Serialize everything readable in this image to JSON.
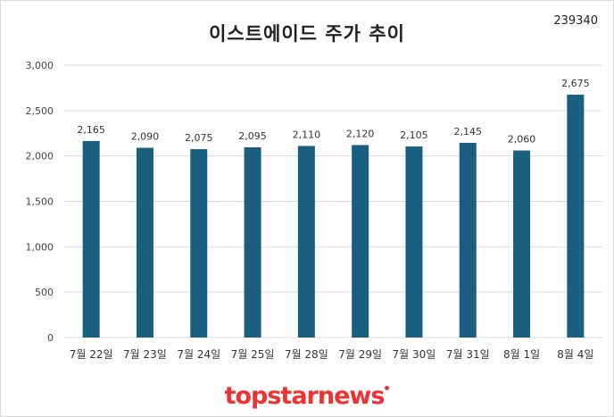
{
  "header": {
    "title": "이스트에이드 주가 추이",
    "stock_code": "239340"
  },
  "footer": {
    "logo_text": "topstarnews"
  },
  "colors": {
    "bar": "#1a5e80",
    "grid": "#d9d9d9",
    "logo": "#e33333"
  },
  "chart_data": {
    "type": "bar",
    "title": "이스트에이드 주가 추이",
    "categories": [
      "7월 22일",
      "7월 23일",
      "7월 24일",
      "7월 25일",
      "7월 28일",
      "7월 29일",
      "7월 30일",
      "7월 31일",
      "8월 1일",
      "8월 4일"
    ],
    "values": [
      2165,
      2090,
      2075,
      2095,
      2110,
      2120,
      2105,
      2145,
      2060,
      2675
    ],
    "data_labels": [
      "2,165",
      "2,090",
      "2,075",
      "2,095",
      "2,110",
      "2,120",
      "2,105",
      "2,145",
      "2,060",
      "2,675"
    ],
    "ylim": [
      0,
      3000
    ],
    "yticks": [
      0,
      500,
      1000,
      1500,
      2000,
      2500,
      3000
    ],
    "ytick_labels": [
      "0",
      "500",
      "1,000",
      "1,500",
      "2,000",
      "2,500",
      "3,000"
    ],
    "grid": true,
    "legend": "none"
  }
}
